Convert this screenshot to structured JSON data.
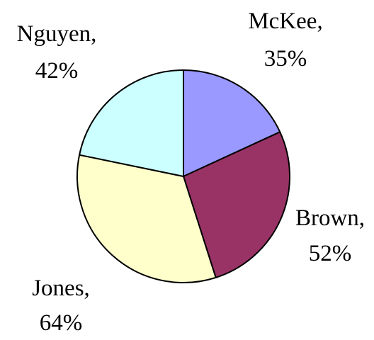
{
  "chart_data": {
    "type": "pie",
    "slices": [
      {
        "name": "McKee",
        "value_label": "35%",
        "value": 35,
        "color": "#9999ff"
      },
      {
        "name": "Brown",
        "value_label": "52%",
        "value": 52,
        "color": "#993366"
      },
      {
        "name": "Jones",
        "value_label": "64%",
        "value": 64,
        "color": "#ffffcc"
      },
      {
        "name": "Nguyen",
        "value_label": "42%",
        "value": 42,
        "color": "#ccffff"
      }
    ],
    "start_angle_deg": 0,
    "direction": "clockwise",
    "outline_color": "#000000",
    "legend": "none"
  }
}
